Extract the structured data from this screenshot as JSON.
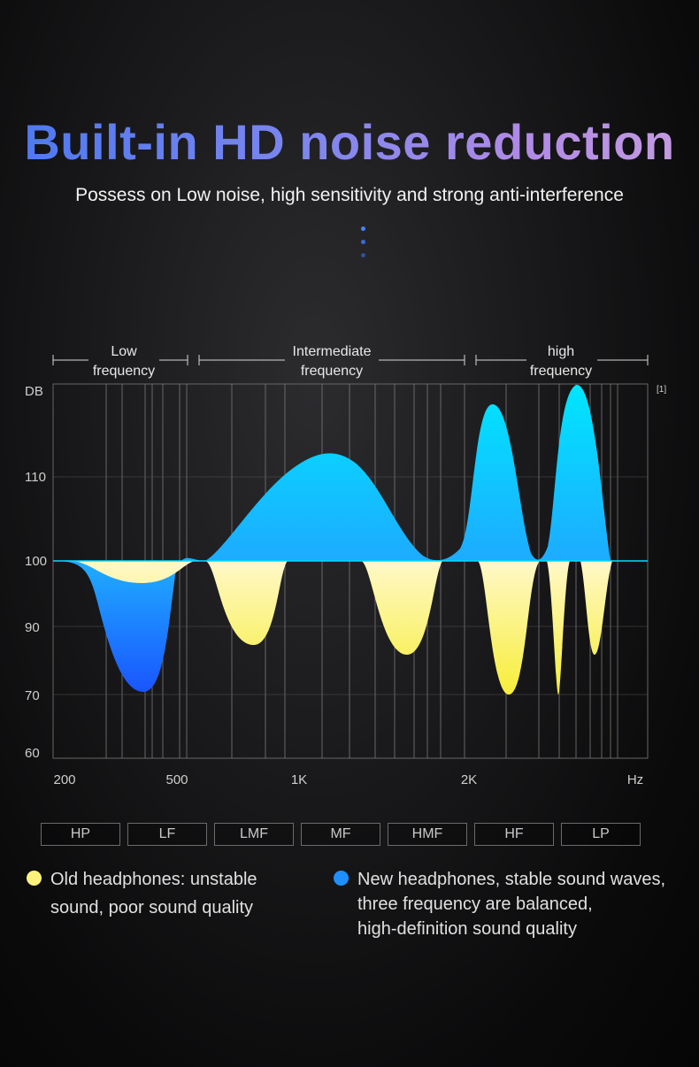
{
  "header": {
    "title": "Built-in HD noise reduction",
    "subtitle": "Possess on Low noise, high sensitivity and strong anti-interference"
  },
  "colors": {
    "new_headphones": "#1e8fff",
    "old_headphones": "#fff27a",
    "grid": "#8a8a8a",
    "dots": [
      "#4a82ff",
      "#3a6ad8",
      "#2d4f9e"
    ]
  },
  "chart_data": {
    "type": "area",
    "band_labels": [
      {
        "line1": "Low",
        "line2": "frequency"
      },
      {
        "line1": "Intermediate",
        "line2": "frequency"
      },
      {
        "line1": "high",
        "line2": "frequency"
      }
    ],
    "ylabel": "DB",
    "corner_note": "[1]",
    "x_ticks": [
      "200",
      "500",
      "1K",
      "2K",
      "Hz"
    ],
    "y_ticks": [
      "110",
      "100",
      "90",
      "70",
      "60"
    ],
    "baseline": "100",
    "series": [
      {
        "name": "New headphones",
        "color": "#1e8fff",
        "points": [
          [
            "200",
            100
          ],
          [
            "300",
            72
          ],
          [
            "500",
            99
          ],
          [
            "1.2K",
            113
          ],
          [
            "2K",
            100
          ],
          [
            "2.4K",
            118
          ],
          [
            "2.8K",
            100
          ],
          [
            "3.2K",
            121
          ],
          [
            "3.8K",
            100
          ]
        ]
      },
      {
        "name": "Old headphones",
        "color": "#fff27a",
        "points": [
          [
            "200",
            100
          ],
          [
            "300",
            97
          ],
          [
            "500",
            100
          ],
          [
            "700",
            89
          ],
          [
            "1K",
            100
          ],
          [
            "1.5K",
            88
          ],
          [
            "2K",
            100
          ],
          [
            "2.5K",
            81
          ],
          [
            "2.9K",
            81
          ],
          [
            "3.4K",
            88
          ],
          [
            "3.8K",
            100
          ]
        ]
      }
    ],
    "bands": [
      "HP",
      "LF",
      "LMF",
      "MF",
      "HMF",
      "HF",
      "LP"
    ]
  },
  "legend": {
    "old": {
      "line1": "Old headphones: unstable",
      "line2": "sound, poor sound quality"
    },
    "new": {
      "line1": "New headphones, stable sound waves,",
      "line2": "three frequency are balanced,",
      "line3": "high-definition sound quality"
    }
  }
}
